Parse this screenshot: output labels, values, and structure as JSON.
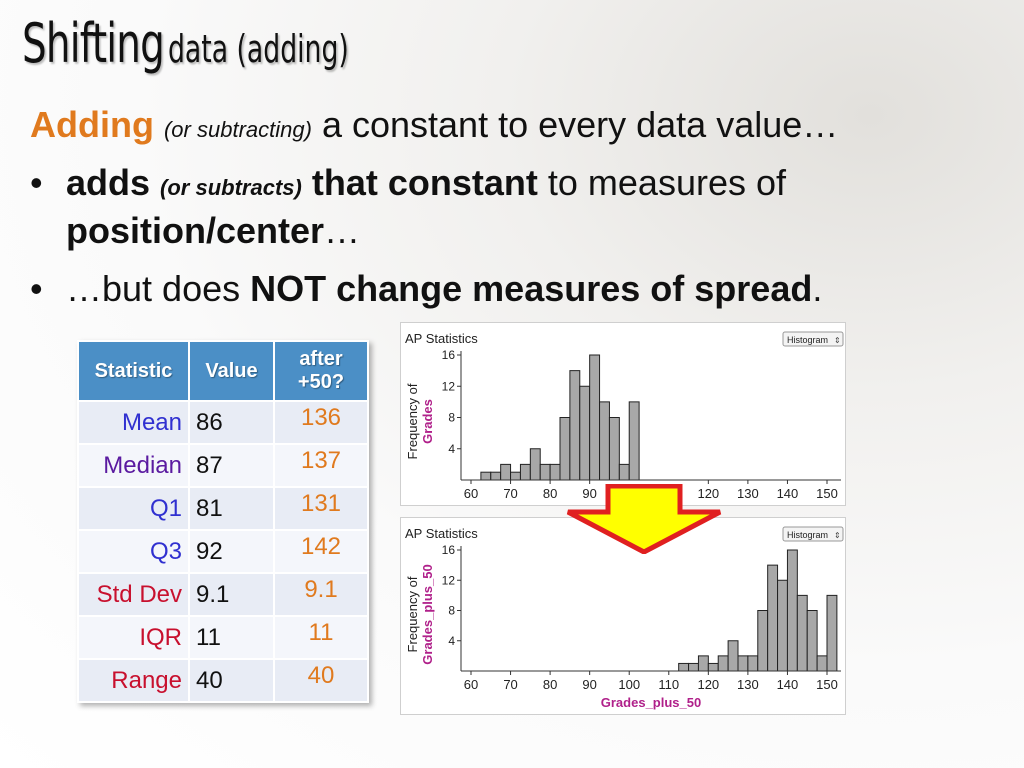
{
  "title": {
    "main": "Shifting",
    "rest": "data (adding)"
  },
  "intro": {
    "lead": "Adding",
    "paren": "(or subtracting)",
    "rest": "a constant to every data value…"
  },
  "bullet1": {
    "b1": "adds",
    "paren": "(or subtracts)",
    "b2": "that constant",
    "rest": "to measures of",
    "b3": "position/center",
    "tail": "…"
  },
  "bullet2": {
    "pre": "…but does",
    "bold": "NOT change measures of spread",
    "tail": "."
  },
  "bullet_glyph": "•",
  "table": {
    "headers": [
      "Statistic",
      "Value",
      "after\n+50?"
    ],
    "rows": [
      {
        "name": "Mean",
        "value": "86",
        "after": "136",
        "color": "#3030d0"
      },
      {
        "name": "Median",
        "value": "87",
        "after": "137",
        "color": "#5a1aa0"
      },
      {
        "name": "Q1",
        "value": "81",
        "after": "131",
        "color": "#3030d0"
      },
      {
        "name": "Q3",
        "value": "92",
        "after": "142",
        "color": "#3030d0"
      },
      {
        "name": "Std Dev",
        "value": "9.1",
        "after": "9.1",
        "color": "#c8102e"
      },
      {
        "name": "IQR",
        "value": "11",
        "after": "11",
        "color": "#c8102e"
      },
      {
        "name": "Range",
        "value": "40",
        "after": "40",
        "color": "#c8102e"
      }
    ]
  },
  "chart_data": [
    {
      "type": "bar",
      "title": "AP Statistics",
      "dropdown": "Histogram",
      "ylabel_a": "Frequency of",
      "ylabel_b": "Grades",
      "xlabel": "",
      "bin_width": 2.5,
      "bin_starts": [
        62.5,
        65,
        67.5,
        70,
        72.5,
        75,
        77.5,
        80,
        82.5,
        85,
        87.5,
        90,
        92.5,
        95,
        97.5,
        100
      ],
      "counts": [
        1,
        1,
        2,
        1,
        2,
        4,
        2,
        2,
        8,
        14,
        12,
        16,
        10,
        8,
        2,
        10
      ],
      "x_ticks": [
        60,
        70,
        80,
        90,
        120,
        130,
        140,
        150
      ],
      "xlim": [
        60,
        150
      ],
      "y_ticks": [
        4,
        8,
        12,
        16
      ],
      "ylim": [
        0,
        16
      ]
    },
    {
      "type": "bar",
      "title": "AP Statistics",
      "dropdown": "Histogram",
      "ylabel_a": "Frequency of",
      "ylabel_b": "Grades_plus_50",
      "xlabel": "Grades_plus_50",
      "bin_width": 2.5,
      "bin_starts": [
        112.5,
        115,
        117.5,
        120,
        122.5,
        125,
        127.5,
        130,
        132.5,
        135,
        137.5,
        140,
        142.5,
        145,
        147.5,
        150
      ],
      "counts": [
        1,
        1,
        2,
        1,
        2,
        4,
        2,
        2,
        8,
        14,
        12,
        16,
        10,
        8,
        2,
        10
      ],
      "x_ticks": [
        60,
        70,
        80,
        90,
        100,
        110,
        120,
        130,
        140,
        150
      ],
      "xlim": [
        60,
        150
      ],
      "y_ticks": [
        4,
        8,
        12,
        16
      ],
      "ylim": [
        0,
        16
      ]
    }
  ],
  "colors": {
    "bar_fill": "#a8a8a8",
    "axis_label": "#b0208a",
    "arrow_fill": "#ffff00",
    "arrow_stroke": "#e02020"
  }
}
